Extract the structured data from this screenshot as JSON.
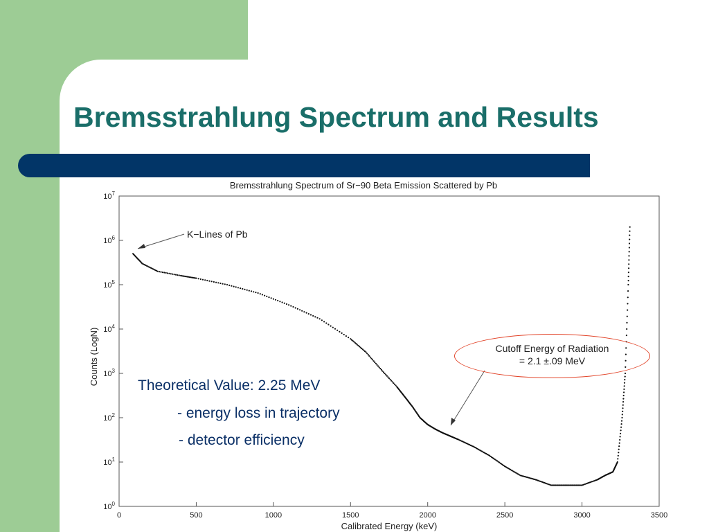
{
  "slide": {
    "title": "Bremsstrahlung Spectrum and Results",
    "colors": {
      "background_band": "#9dcc95",
      "title_text": "#1a6e69",
      "title_bar": "#023567",
      "note_text": "#0a2f66",
      "highlight_oval": "#e2452a"
    }
  },
  "notes": {
    "main": "Theoretical Value: 2.25 MeV",
    "item1": "- energy loss in trajectory",
    "item2": "- detector efficiency"
  },
  "chart_data": {
    "type": "scatter",
    "title": "Bremsstrahlung Spectrum of Sr−90 Beta Emission Scattered by Pb",
    "xlabel": "Calibrated Energy (keV)",
    "ylabel": "Counts (LogN)",
    "xlim": [
      0,
      3500
    ],
    "ylim": [
      1,
      10000000
    ],
    "y_scale": "log",
    "x_ticks": [
      "0",
      "500",
      "1000",
      "1500",
      "2000",
      "2500",
      "3000",
      "3500"
    ],
    "y_tick_exponents": [
      "0",
      "1",
      "2",
      "3",
      "4",
      "5",
      "6",
      "7"
    ],
    "grid": false,
    "annotations": {
      "k_lines": "K−Lines of Pb",
      "cutoff_line1": "Cutoff Energy of Radiation",
      "cutoff_line2": "= 2.1  ±.09 MeV"
    },
    "series": [
      {
        "x": [
          90,
          150,
          250,
          400,
          500,
          700,
          900,
          1100,
          1300,
          1500,
          1600,
          1700,
          1800,
          1850,
          1900,
          1950,
          2000,
          2050,
          2100,
          2150,
          2200,
          2300,
          2400,
          2500,
          2600,
          2700,
          2800,
          2900,
          3000,
          3100,
          3150,
          3200,
          3230,
          3260,
          3280,
          3300,
          3310
        ],
        "y": [
          500000,
          300000,
          200000,
          160000,
          140000,
          100000,
          65000,
          35000,
          17000,
          6000,
          3000,
          1200,
          500,
          300,
          180,
          100,
          70,
          55,
          45,
          38,
          32,
          22,
          14,
          8,
          5,
          4,
          3,
          3,
          3,
          4,
          5,
          6,
          10,
          100,
          1000,
          100000,
          2000000
        ]
      }
    ]
  }
}
